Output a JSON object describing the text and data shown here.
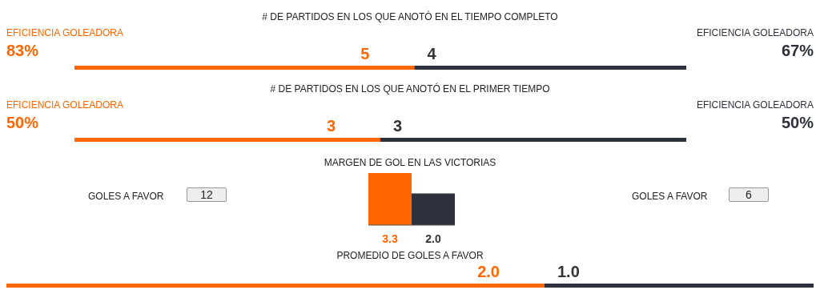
{
  "chart_data": [
    {
      "type": "bar",
      "orientation": "horizontal",
      "stacked": true,
      "title": "# DE PARTIDOS EN LOS QUE ANOTÓ EN EL TIEMPO COMPLETO",
      "categories": [
        null
      ],
      "series": [
        {
          "color": "#ff6600",
          "values": [
            5
          ]
        },
        {
          "color": "#2d313d",
          "values": [
            4
          ]
        }
      ],
      "data_labels": true,
      "annotations": [
        "EFICIENCIA GOLEADORA",
        "83%",
        "EFICIENCIA GOLEADORA",
        "67%"
      ]
    },
    {
      "type": "bar",
      "orientation": "horizontal",
      "stacked": true,
      "title": "# DE PARTIDOS EN LOS QUE ANOTÓ EN EL PRIMER TIEMPO",
      "categories": [
        null
      ],
      "series": [
        {
          "color": "#ff6600",
          "values": [
            3
          ]
        },
        {
          "color": "#2d313d",
          "values": [
            3
          ]
        }
      ],
      "data_labels": true,
      "annotations": [
        "EFICIENCIA GOLEADORA",
        "50%",
        "EFICIENCIA GOLEADORA",
        "50%"
      ]
    },
    {
      "type": "bar",
      "title": "MARGEN DE GOL EN LAS VICTORIAS",
      "categories": [
        null,
        null
      ],
      "values": [
        3.3,
        2.0
      ],
      "colors": [
        "#ff6600",
        "#2d313d"
      ],
      "value_labels": [
        "3.3",
        "2.0"
      ],
      "annotations": [
        "GOLES A FAVOR",
        "12",
        "GOLES A FAVOR",
        "6"
      ]
    },
    {
      "type": "bar",
      "orientation": "horizontal",
      "stacked": true,
      "title": "PROMEDIO DE GOLES A FAVOR",
      "categories": [
        null
      ],
      "series": [
        {
          "color": "#ff6600",
          "values": [
            2.0
          ],
          "value_labels": [
            "2.0"
          ]
        },
        {
          "color": "#2d313d",
          "values": [
            1.0
          ],
          "value_labels": [
            "1.0"
          ]
        }
      ]
    }
  ]
}
